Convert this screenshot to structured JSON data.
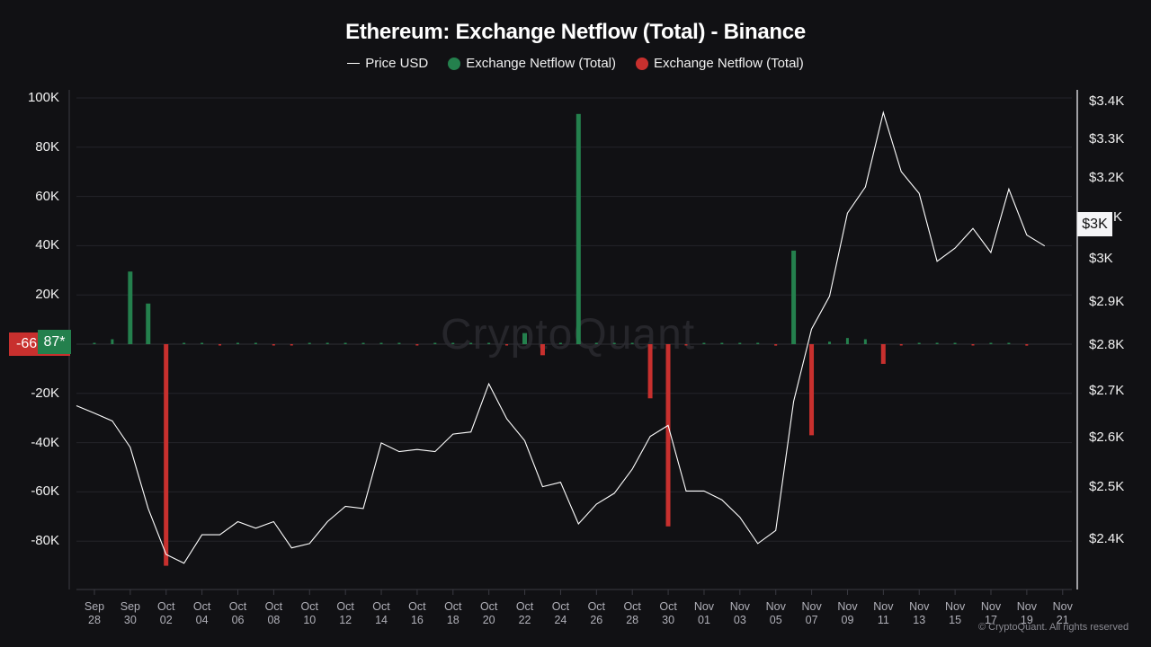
{
  "title": "Ethereum: Exchange Netflow (Total) - Binance",
  "legend": [
    {
      "label": "Price USD",
      "type": "line",
      "color": "#ffffff"
    },
    {
      "label": "Exchange Netflow (Total)",
      "type": "dot",
      "color": "#24804d"
    },
    {
      "label": "Exchange Netflow (Total)",
      "type": "dot",
      "color": "#c8302e"
    }
  ],
  "watermark": "CryptoQuant",
  "copyright": "© CryptoQuant. All rights reserved",
  "badges": {
    "left_red": "-66",
    "left_green": "87*",
    "right_price": "$3K"
  },
  "colors": {
    "background": "#111114",
    "grid": "#24242a",
    "positive": "#24804d",
    "negative": "#c8302e",
    "price_line": "#ffffff"
  },
  "axes": {
    "left_ticks": [
      "100K",
      "80K",
      "60K",
      "40K",
      "20K",
      "-20K",
      "-40K",
      "-60K",
      "-80K"
    ],
    "right_ticks": [
      "$3.4K",
      "$3.3K",
      "$3.2K",
      "K",
      "$3K",
      "$2.9K",
      "$2.8K",
      "$2.7K",
      "$2.6K",
      "$2.5K",
      "$2.4K"
    ],
    "x_ticks": [
      {
        "m": "Sep",
        "d": "28"
      },
      {
        "m": "Sep",
        "d": "30"
      },
      {
        "m": "Oct",
        "d": "02"
      },
      {
        "m": "Oct",
        "d": "04"
      },
      {
        "m": "Oct",
        "d": "06"
      },
      {
        "m": "Oct",
        "d": "08"
      },
      {
        "m": "Oct",
        "d": "10"
      },
      {
        "m": "Oct",
        "d": "12"
      },
      {
        "m": "Oct",
        "d": "14"
      },
      {
        "m": "Oct",
        "d": "16"
      },
      {
        "m": "Oct",
        "d": "18"
      },
      {
        "m": "Oct",
        "d": "20"
      },
      {
        "m": "Oct",
        "d": "22"
      },
      {
        "m": "Oct",
        "d": "24"
      },
      {
        "m": "Oct",
        "d": "26"
      },
      {
        "m": "Oct",
        "d": "28"
      },
      {
        "m": "Oct",
        "d": "30"
      },
      {
        "m": "Nov",
        "d": "01"
      },
      {
        "m": "Nov",
        "d": "03"
      },
      {
        "m": "Nov",
        "d": "05"
      },
      {
        "m": "Nov",
        "d": "07"
      },
      {
        "m": "Nov",
        "d": "09"
      },
      {
        "m": "Nov",
        "d": "11"
      },
      {
        "m": "Nov",
        "d": "13"
      },
      {
        "m": "Nov",
        "d": "15"
      },
      {
        "m": "Nov",
        "d": "17"
      },
      {
        "m": "Nov",
        "d": "19"
      },
      {
        "m": "Nov",
        "d": "21"
      }
    ]
  },
  "chart_data": {
    "type": "bar+line",
    "title": "Ethereum: Exchange Netflow (Total) - Binance",
    "xlabel": "",
    "ylabel_left": "Exchange Netflow (Total)",
    "ylabel_right": "Price USD",
    "ylim_left": [
      -100000,
      100000
    ],
    "ylim_right": [
      2300,
      3400
    ],
    "grid": true,
    "legend_position": "top",
    "x": [
      "Sep 27",
      "Sep 28",
      "Sep 29",
      "Sep 30",
      "Oct 01",
      "Oct 02",
      "Oct 03",
      "Oct 04",
      "Oct 05",
      "Oct 06",
      "Oct 07",
      "Oct 08",
      "Oct 09",
      "Oct 10",
      "Oct 11",
      "Oct 12",
      "Oct 13",
      "Oct 14",
      "Oct 15",
      "Oct 16",
      "Oct 17",
      "Oct 18",
      "Oct 19",
      "Oct 20",
      "Oct 21",
      "Oct 22",
      "Oct 23",
      "Oct 24",
      "Oct 25",
      "Oct 26",
      "Oct 27",
      "Oct 28",
      "Oct 29",
      "Oct 30",
      "Oct 31",
      "Nov 01",
      "Nov 02",
      "Nov 03",
      "Nov 04",
      "Nov 05",
      "Nov 06",
      "Nov 07",
      "Nov 08",
      "Nov 09",
      "Nov 10",
      "Nov 11",
      "Nov 12",
      "Nov 13",
      "Nov 14",
      "Nov 15",
      "Nov 16",
      "Nov 17",
      "Nov 18",
      "Nov 19",
      "Nov 20"
    ],
    "series": [
      {
        "name": "Exchange Netflow (Total)",
        "axis": "left",
        "type": "bar",
        "values": [
          0,
          500,
          2000,
          29500,
          16500,
          -90000,
          200,
          300,
          -300,
          300,
          500,
          -300,
          -200,
          300,
          200,
          200,
          300,
          400,
          200,
          -300,
          200,
          200,
          200,
          300,
          -300,
          4500,
          -4500,
          300,
          93500,
          400,
          200,
          300,
          -22000,
          -74000,
          -400,
          200,
          200,
          400,
          300,
          -600,
          38000,
          -37000,
          1000,
          2500,
          2000,
          -8000,
          -500,
          300,
          300,
          400,
          -500,
          300,
          400,
          -600,
          0
        ]
      },
      {
        "name": "Price USD",
        "axis": "right",
        "type": "line",
        "values": [
          2705,
          2688,
          2670,
          2610,
          2470,
          2365,
          2345,
          2410,
          2410,
          2440,
          2425,
          2440,
          2380,
          2390,
          2440,
          2475,
          2470,
          2620,
          2600,
          2605,
          2600,
          2640,
          2645,
          2755,
          2675,
          2625,
          2520,
          2530,
          2435,
          2480,
          2505,
          2560,
          2635,
          2660,
          2510,
          2510,
          2490,
          2450,
          2390,
          2420,
          2715,
          2880,
          2955,
          3145,
          3205,
          3375,
          3240,
          3190,
          3035,
          3065,
          3110,
          3055,
          3200,
          3095,
          3070
        ]
      }
    ]
  }
}
